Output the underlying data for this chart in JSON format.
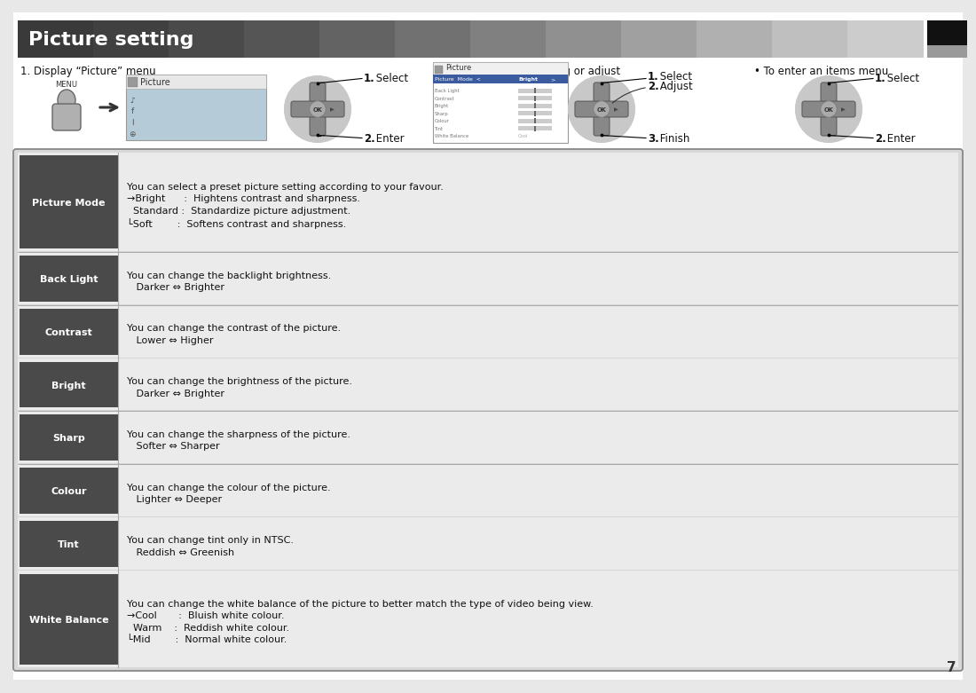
{
  "title": "Picture setting",
  "page_number": "7",
  "section1_label": "1. Display “Picture” menu",
  "section2_label": "2. Select item and setting or adjust",
  "section3_label": "• To enter an items menu",
  "step1_select": "1.",
  "step1_select2": " Select",
  "step1_enter": "2.",
  "step1_enter2": " Enter",
  "step2_select": "1.",
  "step2_select2": " Select",
  "step2_adjust": "2.",
  "step2_adjust2": " Adjust",
  "step2_finish": "3.",
  "step2_finish2": " Finish",
  "step3_select": "1.",
  "step3_select2": " Select",
  "step3_enter": "2.",
  "step3_enter2": " Enter",
  "menu_items": [
    {
      "label": "Picture Mode",
      "lines": [
        "You can select a preset picture setting according to your favour.",
        "→Bright      :  Hightens contrast and sharpness.",
        "  Standard :  Standardize picture adjustment.",
        "└Soft        :  Softens contrast and sharpness."
      ],
      "tall": true
    },
    {
      "label": "Back Light",
      "lines": [
        "You can change the backlight brightness.",
        "   Darker ⇔ Brighter"
      ],
      "tall": false
    },
    {
      "label": "Contrast",
      "lines": [
        "You can change the contrast of the picture.",
        "   Lower ⇔ Higher"
      ],
      "tall": false
    },
    {
      "label": "Bright",
      "lines": [
        "You can change the brightness of the picture.",
        "   Darker ⇔ Brighter"
      ],
      "tall": false
    },
    {
      "label": "Sharp",
      "lines": [
        "You can change the sharpness of the picture.",
        "   Softer ⇔ Sharper"
      ],
      "tall": false
    },
    {
      "label": "Colour",
      "lines": [
        "You can change the colour of the picture.",
        "   Lighter ⇔ Deeper"
      ],
      "tall": false
    },
    {
      "label": "Tint",
      "lines": [
        "You can change tint only in NTSC.",
        "   Reddish ⇔ Greenish"
      ],
      "tall": false
    },
    {
      "label": "White Balance",
      "lines": [
        "You can change the white balance of the picture to better match the type of video being view.",
        "→Cool       :  Bluish white colour.",
        "  Warm    :  Reddish white colour.",
        "└Mid        :  Normal white colour."
      ],
      "tall": true
    }
  ],
  "title_grad_colors": [
    "#3a3a3a",
    "#404040",
    "#4a4a4a",
    "#555555",
    "#636363",
    "#717171",
    "#808080",
    "#909090",
    "#a0a0a0",
    "#b0b0b0",
    "#bfbfbf",
    "#cccccc"
  ],
  "label_bg": "#4a4a4a",
  "label_text_color": "#ffffff",
  "table_bg": "#d8d8d8",
  "table_border_color": "#888888",
  "row_line_color": "#aaaaaa",
  "row_content_bg": "#f0f0f0",
  "text_color": "#111111",
  "dpad_bg": "#c8c8c8",
  "dpad_arm": "#888888",
  "dpad_arm_edge": "#555555",
  "dpad_ok_color": "#aaaaaa",
  "right_black": "#111111",
  "right_gray": "#999999"
}
